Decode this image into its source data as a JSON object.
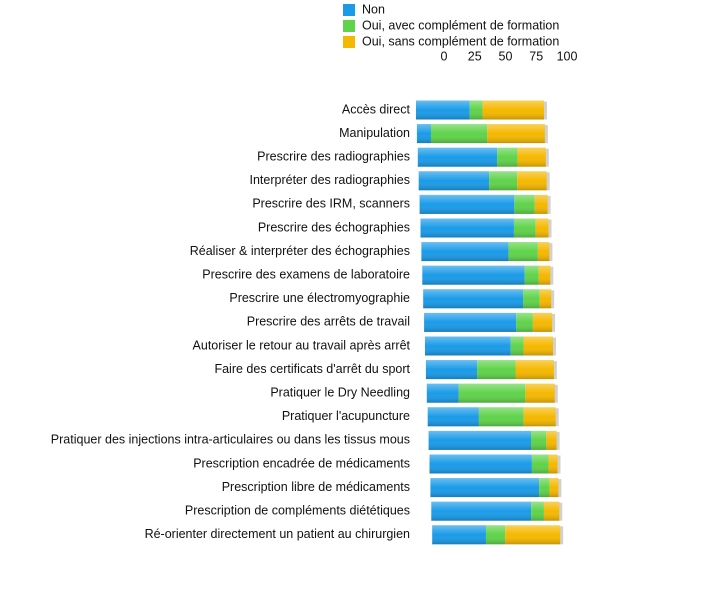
{
  "chart_data": {
    "type": "bar",
    "orientation": "horizontal",
    "stacked": true,
    "categories": [
      "Accès direct",
      "Manipulation",
      "Prescrire des radiographies",
      "Interpréter des radiographies",
      "Prescrire des IRM, scanners",
      "Prescrire des échographies",
      "Réaliser & interpréter des échographies",
      "Prescrire des examens de laboratoire",
      "Prescrire une électromyographie",
      "Prescrire des arrêts de travail",
      "Autoriser le retour au travail après arrêt",
      "Faire des certificats d'arrêt du sport",
      "Pratiquer le Dry Needling",
      "Pratiquer l'acupuncture",
      "Pratiquer des injections intra-articulaires ou dans les tissus mous",
      "Prescription encadrée de médicaments",
      "Prescription libre de médicaments",
      "Prescription de compléments diététiques",
      "Ré-orienter directement un patient au chirurgien"
    ],
    "series": [
      {
        "name": "Non",
        "color": "#1a9be8",
        "values": [
          42,
          11,
          62,
          55,
          74,
          73,
          68,
          80,
          78,
          72,
          67,
          40,
          25,
          40,
          80,
          80,
          85,
          78,
          42
        ]
      },
      {
        "name": "Oui, avec complément de formation",
        "color": "#5fd34a",
        "values": [
          10,
          44,
          16,
          22,
          16,
          17,
          23,
          11,
          13,
          13,
          10,
          30,
          52,
          35,
          12,
          13,
          8,
          10,
          15
        ]
      },
      {
        "name": "Oui, sans complément de formation",
        "color": "#f5b800",
        "values": [
          48,
          45,
          22,
          23,
          10,
          10,
          9,
          9,
          9,
          15,
          23,
          30,
          23,
          25,
          8,
          7,
          7,
          12,
          43
        ]
      }
    ],
    "xlim": [
      0,
      100
    ],
    "xticks": [
      0,
      25,
      50,
      75,
      100
    ],
    "legend": "top"
  }
}
